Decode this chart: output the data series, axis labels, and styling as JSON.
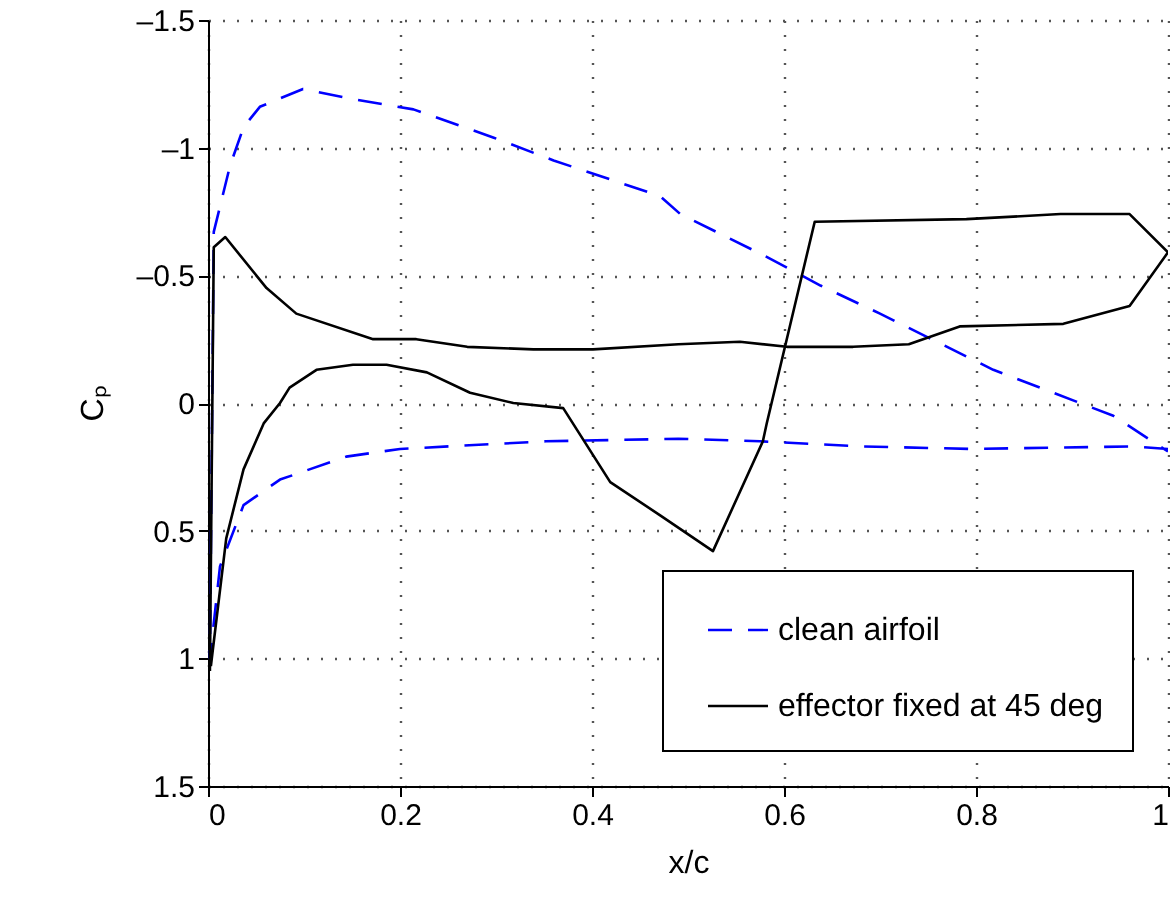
{
  "chart_data": {
    "type": "line",
    "xlabel": "x/c",
    "ylabel": "Cₚ",
    "xlim": [
      0,
      1
    ],
    "xticks": [
      0,
      0.2,
      0.4,
      0.6,
      0.8,
      1
    ],
    "ylim": [
      1.5,
      -1.5
    ],
    "yticks": [
      {
        "value": -1.5,
        "label": "–1.5"
      },
      {
        "value": -1,
        "label": "–1"
      },
      {
        "value": -0.5,
        "label": "–0.5"
      },
      0,
      0.5,
      1,
      1.5
    ],
    "grid": true,
    "legend": "bottom right",
    "marker": "none",
    "series": [
      {
        "name": "clean airfoil",
        "color": "#0000ff",
        "line_style": "dashed",
        "x": [
          1,
          0.964,
          0.797,
          0.68,
          0.575,
          0.49,
          0.352,
          0.2,
          0.144,
          0.075,
          0.037,
          0.0125,
          0.002,
          0.006,
          0.023,
          0.037,
          0.054,
          0.099,
          0.151,
          0.214,
          0.297,
          0.36,
          0.471,
          0.492,
          0.578,
          0.638,
          0.7,
          0.818,
          0.943,
          1
        ],
        "values": [
          0.18,
          0.17,
          0.18,
          0.17,
          0.15,
          0.14,
          0.15,
          0.18,
          0.21,
          0.3,
          0.4,
          0.64,
          1.0,
          -0.67,
          -0.93,
          -1.08,
          -1.16,
          -1.23,
          -1.19,
          -1.15,
          -1.04,
          -0.95,
          -0.81,
          -0.74,
          -0.58,
          -0.46,
          -0.35,
          -0.13,
          0.05,
          0.19
        ]
      },
      {
        "name": "effector fixed at 45 deg",
        "color": "#000000",
        "line_style": "solid",
        "x": [
          0.002,
          0.006,
          0.018,
          0.061,
          0.092,
          0.172,
          0.217,
          0.27,
          0.339,
          0.401,
          0.49,
          0.554,
          0.603,
          0.672,
          0.73,
          0.783,
          0.891,
          0.96,
          1,
          0.96,
          0.888,
          0.79,
          0.632,
          0.582,
          0.578,
          0.526,
          0.471,
          0.419,
          0.37,
          0.318,
          0.273,
          0.228,
          0.186,
          0.151,
          0.113,
          0.085,
          0.075,
          0.058,
          0.037,
          0.019,
          0.003
        ],
        "values": [
          1.05,
          -0.61,
          -0.65,
          -0.45,
          -0.35,
          -0.25,
          -0.25,
          -0.22,
          -0.21,
          -0.21,
          -0.23,
          -0.24,
          -0.22,
          -0.22,
          -0.23,
          -0.3,
          -0.31,
          -0.38,
          -0.59,
          -0.74,
          -0.74,
          -0.72,
          -0.71,
          0.08,
          0.15,
          0.58,
          0.44,
          0.31,
          0.02,
          0,
          -0.04,
          -0.12,
          -0.15,
          -0.15,
          -0.13,
          -0.06,
          0,
          0.08,
          0.26,
          0.53,
          1.03
        ]
      }
    ]
  }
}
